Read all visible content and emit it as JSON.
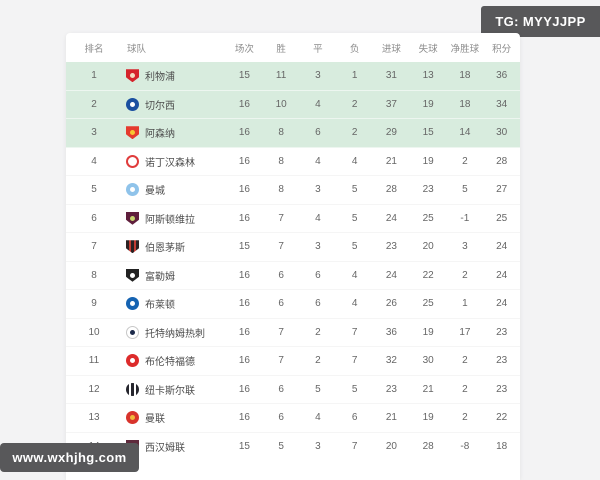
{
  "overlays": {
    "telegram_label": "TG: MYYJJPP",
    "website_label": "www.wxhjhg.com",
    "overlay_bg": "#58585a",
    "overlay_text_color": "#ffffff"
  },
  "table": {
    "highlight_bg": "#d8ecde",
    "columns": [
      {
        "key": "rank",
        "label": "排名"
      },
      {
        "key": "team",
        "label": "球队"
      },
      {
        "key": "played",
        "label": "场次"
      },
      {
        "key": "win",
        "label": "胜"
      },
      {
        "key": "draw",
        "label": "平"
      },
      {
        "key": "loss",
        "label": "负"
      },
      {
        "key": "gf",
        "label": "进球"
      },
      {
        "key": "ga",
        "label": "失球"
      },
      {
        "key": "gd",
        "label": "净胜球"
      },
      {
        "key": "pts",
        "label": "积分"
      }
    ],
    "rows": [
      {
        "rank": "1",
        "team": "利物浦",
        "highlight": true,
        "badge": {
          "icon": "liverpool-crest-icon",
          "shape": "shield",
          "pattern": "center",
          "c1": "#d5242b",
          "c2": "#f3ddc0"
        },
        "played": "15",
        "win": "11",
        "draw": "3",
        "loss": "1",
        "gf": "31",
        "ga": "13",
        "gd": "18",
        "pts": "36"
      },
      {
        "rank": "2",
        "team": "切尔西",
        "highlight": true,
        "badge": {
          "icon": "chelsea-crest-icon",
          "shape": "circle",
          "pattern": "center",
          "c1": "#1a4fa0",
          "c2": "#ffffff"
        },
        "played": "16",
        "win": "10",
        "draw": "4",
        "loss": "2",
        "gf": "37",
        "ga": "19",
        "gd": "18",
        "pts": "34"
      },
      {
        "rank": "3",
        "team": "阿森纳",
        "highlight": true,
        "badge": {
          "icon": "arsenal-crest-icon",
          "shape": "shield",
          "pattern": "center",
          "c1": "#e53a2e",
          "c2": "#f7c631"
        },
        "played": "16",
        "win": "8",
        "draw": "6",
        "loss": "2",
        "gf": "29",
        "ga": "15",
        "gd": "14",
        "pts": "30"
      },
      {
        "rank": "4",
        "team": "诺丁汉森林",
        "highlight": false,
        "badge": {
          "icon": "nottingham-forest-crest-icon",
          "shape": "circle",
          "pattern": "ring",
          "c1": "#e03c3c",
          "c2": "#ffffff"
        },
        "played": "16",
        "win": "8",
        "draw": "4",
        "loss": "4",
        "gf": "21",
        "ga": "19",
        "gd": "2",
        "pts": "28"
      },
      {
        "rank": "5",
        "team": "曼城",
        "highlight": false,
        "badge": {
          "icon": "man-city-crest-icon",
          "shape": "circle",
          "pattern": "center",
          "c1": "#8fc3ea",
          "c2": "#ffffff"
        },
        "played": "16",
        "win": "8",
        "draw": "3",
        "loss": "5",
        "gf": "28",
        "ga": "23",
        "gd": "5",
        "pts": "27"
      },
      {
        "rank": "6",
        "team": "阿斯顿维拉",
        "highlight": false,
        "badge": {
          "icon": "aston-villa-crest-icon",
          "shape": "shield",
          "pattern": "center",
          "c1": "#5f1e3c",
          "c2": "#c7d36f"
        },
        "played": "16",
        "win": "7",
        "draw": "4",
        "loss": "5",
        "gf": "24",
        "ga": "25",
        "gd": "-1",
        "pts": "25"
      },
      {
        "rank": "7",
        "team": "伯恩茅斯",
        "highlight": false,
        "badge": {
          "icon": "bournemouth-crest-icon",
          "shape": "shield",
          "pattern": "stripes",
          "c1": "#2b2123",
          "c2": "#c23b33"
        },
        "played": "15",
        "win": "7",
        "draw": "3",
        "loss": "5",
        "gf": "23",
        "ga": "20",
        "gd": "3",
        "pts": "24"
      },
      {
        "rank": "8",
        "team": "富勒姆",
        "highlight": false,
        "badge": {
          "icon": "fulham-crest-icon",
          "shape": "shield",
          "pattern": "center",
          "c1": "#222222",
          "c2": "#ffffff"
        },
        "played": "16",
        "win": "6",
        "draw": "6",
        "loss": "4",
        "gf": "24",
        "ga": "22",
        "gd": "2",
        "pts": "24"
      },
      {
        "rank": "9",
        "team": "布莱顿",
        "highlight": false,
        "badge": {
          "icon": "brighton-crest-icon",
          "shape": "circle",
          "pattern": "center",
          "c1": "#1563b2",
          "c2": "#ffffff"
        },
        "played": "16",
        "win": "6",
        "draw": "6",
        "loss": "4",
        "gf": "26",
        "ga": "25",
        "gd": "1",
        "pts": "24"
      },
      {
        "rank": "10",
        "team": "托特纳姆热刺",
        "highlight": false,
        "badge": {
          "icon": "tottenham-crest-icon",
          "shape": "circle",
          "pattern": "center",
          "c1": "#ffffff",
          "c2": "#1c2a4a",
          "border": "#c8c8c8"
        },
        "played": "16",
        "win": "7",
        "draw": "2",
        "loss": "7",
        "gf": "36",
        "ga": "19",
        "gd": "17",
        "pts": "23"
      },
      {
        "rank": "11",
        "team": "布伦特福德",
        "highlight": false,
        "badge": {
          "icon": "brentford-crest-icon",
          "shape": "circle",
          "pattern": "center",
          "c1": "#dd2b2b",
          "c2": "#ffffff"
        },
        "played": "16",
        "win": "7",
        "draw": "2",
        "loss": "7",
        "gf": "32",
        "ga": "30",
        "gd": "2",
        "pts": "23"
      },
      {
        "rank": "12",
        "team": "纽卡斯尔联",
        "highlight": false,
        "badge": {
          "icon": "newcastle-crest-icon",
          "shape": "circle",
          "pattern": "stripes",
          "c1": "#26262e",
          "c2": "#ffffff"
        },
        "played": "16",
        "win": "6",
        "draw": "5",
        "loss": "5",
        "gf": "23",
        "ga": "21",
        "gd": "2",
        "pts": "23"
      },
      {
        "rank": "13",
        "team": "曼联",
        "highlight": false,
        "badge": {
          "icon": "man-united-crest-icon",
          "shape": "circle",
          "pattern": "center",
          "c1": "#d8342c",
          "c2": "#f0b93c"
        },
        "played": "16",
        "win": "6",
        "draw": "4",
        "loss": "6",
        "gf": "21",
        "ga": "19",
        "gd": "2",
        "pts": "22"
      },
      {
        "rank": "14",
        "team": "西汉姆联",
        "highlight": false,
        "badge": {
          "icon": "west-ham-crest-icon",
          "shape": "shield",
          "pattern": "center",
          "c1": "#5f2a3c",
          "c2": "#ecc98a"
        },
        "played": "15",
        "win": "5",
        "draw": "3",
        "loss": "7",
        "gf": "20",
        "ga": "28",
        "gd": "-8",
        "pts": "18"
      }
    ]
  }
}
